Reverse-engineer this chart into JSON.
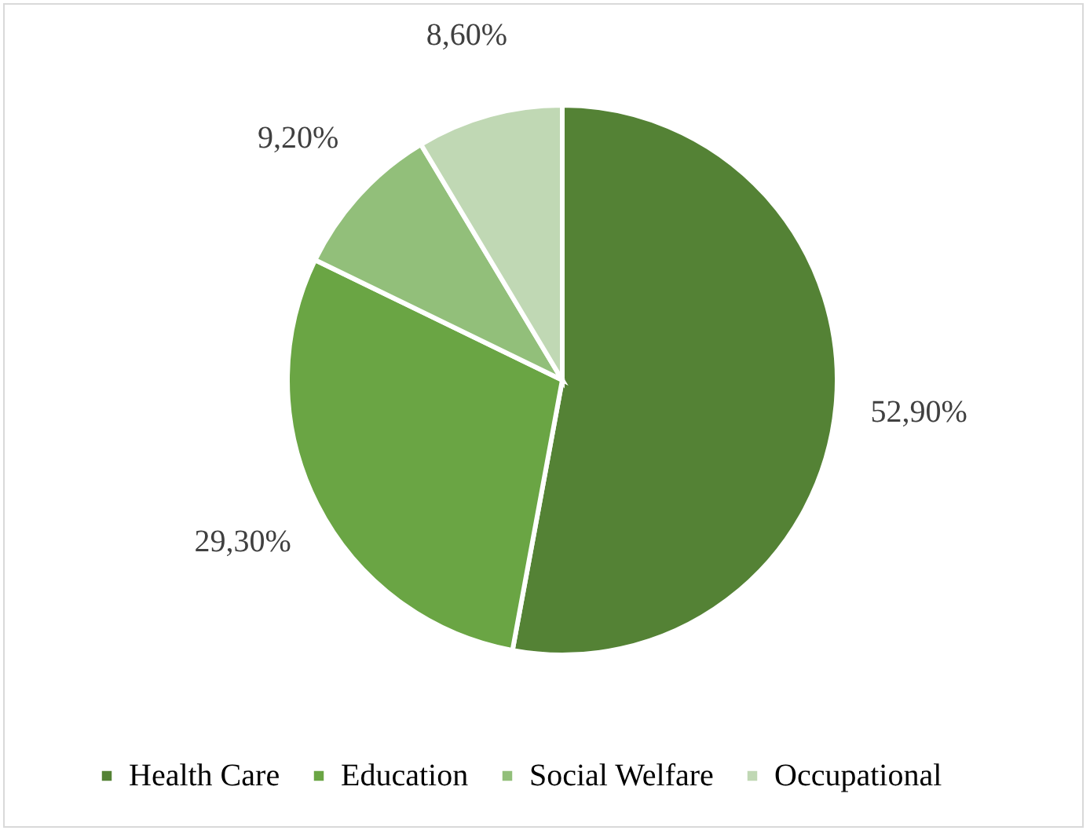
{
  "chart_data": {
    "type": "pie",
    "categories": [
      "Health Care",
      "Education",
      "Social Welfare",
      "Occupational"
    ],
    "values": [
      52.9,
      29.3,
      9.2,
      8.6
    ],
    "colors": [
      "#548235",
      "#6aa544",
      "#92bf7a",
      "#c0d8b4"
    ],
    "value_labels": [
      "52,90%",
      "29,30%",
      "9,20%",
      "8,60%"
    ],
    "legend": "bottom"
  }
}
